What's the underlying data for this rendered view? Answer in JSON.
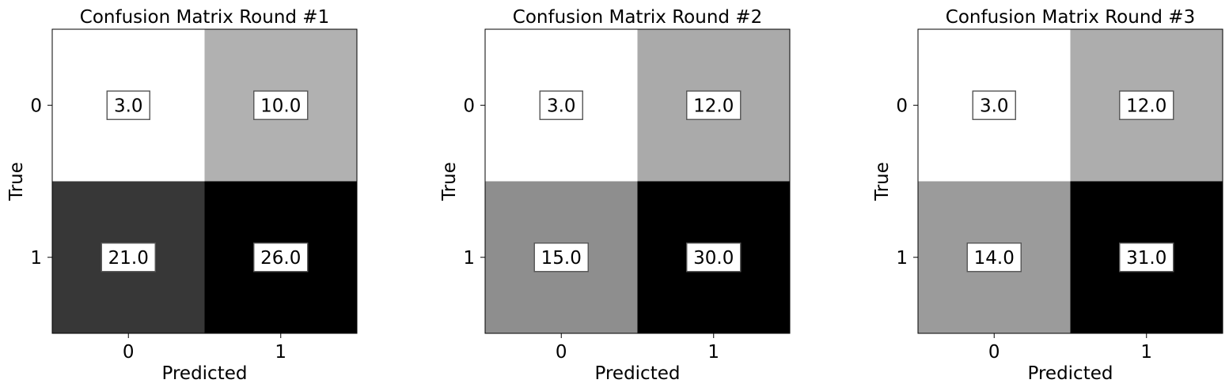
{
  "chart_data": [
    {
      "type": "heatmap",
      "title": "Confusion Matrix Round #1",
      "xlabel": "Predicted",
      "ylabel": "True",
      "x_categories": [
        "0",
        "1"
      ],
      "y_categories": [
        "0",
        "1"
      ],
      "values": [
        [
          3.0,
          10.0
        ],
        [
          21.0,
          26.0
        ]
      ],
      "cell_labels": [
        [
          "3.0",
          "10.0"
        ],
        [
          "21.0",
          "26.0"
        ]
      ],
      "colormap": "gray_r",
      "grid": false
    },
    {
      "type": "heatmap",
      "title": "Confusion Matrix Round #2",
      "xlabel": "Predicted",
      "ylabel": "True",
      "x_categories": [
        "0",
        "1"
      ],
      "y_categories": [
        "0",
        "1"
      ],
      "values": [
        [
          3.0,
          12.0
        ],
        [
          15.0,
          30.0
        ]
      ],
      "cell_labels": [
        [
          "3.0",
          "12.0"
        ],
        [
          "15.0",
          "30.0"
        ]
      ],
      "colormap": "gray_r",
      "grid": false
    },
    {
      "type": "heatmap",
      "title": "Confusion Matrix Round #3",
      "xlabel": "Predicted",
      "ylabel": "True",
      "x_categories": [
        "0",
        "1"
      ],
      "y_categories": [
        "0",
        "1"
      ],
      "values": [
        [
          3.0,
          12.0
        ],
        [
          14.0,
          31.0
        ]
      ],
      "cell_labels": [
        [
          "3.0",
          "12.0"
        ],
        [
          "14.0",
          "31.0"
        ]
      ],
      "colormap": "gray_r",
      "grid": false
    }
  ]
}
